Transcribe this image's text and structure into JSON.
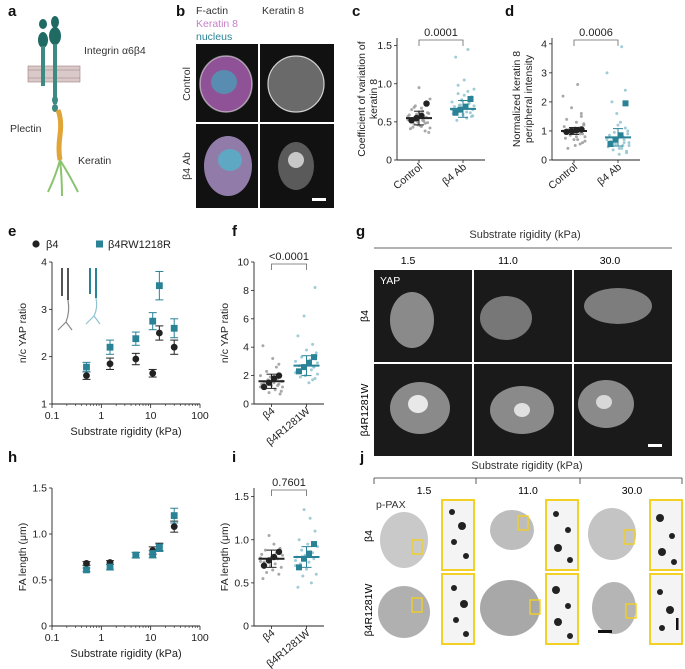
{
  "panel_letters": [
    "a",
    "b",
    "c",
    "d",
    "e",
    "f",
    "g",
    "h",
    "i",
    "j"
  ],
  "schematic": {
    "integrin_label": "Integrin α6β4",
    "plectin_label": "Plectin",
    "keratin_label": "Keratin"
  },
  "micrographs_b": {
    "stain_labels": [
      "F-actin",
      "Keratin 8",
      "nucleus"
    ],
    "column_header": "Keratin 8",
    "row_labels": [
      "Control",
      "β4 Ab"
    ]
  },
  "micrographs_g": {
    "title": "Substrate rigidity (kPa)",
    "columns": [
      "1.5",
      "11.0",
      "30.0"
    ],
    "stain_label": "YAP",
    "row_labels": [
      "β4",
      "β4R1281W"
    ]
  },
  "micrographs_j": {
    "title": "Substrate rigidity (kPa)",
    "columns": [
      "1.5",
      "11.0",
      "30.0"
    ],
    "stain_label": "p-PAX",
    "row_labels": [
      "β4",
      "β4R1281W"
    ]
  },
  "colors": {
    "black_series": "#222222",
    "teal_series": "#2a8296",
    "teal_light": "#8fc3d1",
    "highlight": "#f2d024",
    "magenta": "#c87fc8"
  },
  "chart_data": [
    {
      "id": "c",
      "type": "scatter",
      "ylabel": "Coefficient of variation of keratin 8",
      "categories": [
        "Control",
        "β4 Ab"
      ],
      "ylim": [
        0,
        1.6
      ],
      "yticks": [
        "0",
        "0.5",
        "1.0",
        "1.5"
      ],
      "means": [
        0.55,
        0.67
      ],
      "sd": [
        0.09,
        0.11
      ],
      "pvalue": "0.0001",
      "points": [
        [
          0.57,
          0.42,
          0.61,
          0.49,
          0.75,
          0.38,
          0.55,
          0.52,
          0.68,
          0.45,
          0.63,
          0.5,
          0.58,
          0.71,
          0.47,
          0.54,
          0.66,
          0.41,
          0.59,
          0.53,
          0.8,
          0.36,
          0.62,
          0.56,
          0.48,
          0.51,
          0.64,
          0.44,
          0.57,
          0.95,
          0.46,
          0.6,
          0.52,
          0.69,
          0.43
        ],
        [
          0.66,
          0.71,
          0.58,
          0.83,
          0.62,
          0.75,
          0.9,
          0.55,
          0.68,
          1.05,
          0.6,
          0.79,
          0.72,
          0.64,
          0.87,
          0.52,
          1.35,
          0.7,
          0.61,
          0.76,
          0.93,
          0.66,
          0.57,
          0.81,
          0.74,
          1.45,
          0.63,
          0.69,
          0.85,
          0.59,
          0.78,
          0.67,
          0.72,
          0.98,
          0.6
        ]
      ],
      "replicate_means": [
        [
          0.52,
          0.55,
          0.58,
          0.74
        ],
        [
          0.62,
          0.66,
          0.7,
          0.8
        ]
      ]
    },
    {
      "id": "d",
      "type": "scatter",
      "ylabel": "Normalized keratin 8 peripheral intensity",
      "categories": [
        "Control",
        "β4 Ab"
      ],
      "ylim": [
        0,
        4.2
      ],
      "yticks": [
        "0",
        "1",
        "2",
        "3",
        "4"
      ],
      "means": [
        1.0,
        0.78
      ],
      "sd": [
        0.12,
        0.3
      ],
      "pvalue": "0.0006",
      "points": [
        [
          1.0,
          0.8,
          1.2,
          0.6,
          1.5,
          0.9,
          1.1,
          0.7,
          1.3,
          0.5,
          1.0,
          0.95,
          1.8,
          0.85,
          1.05,
          0.4,
          1.4,
          0.75,
          1.15,
          2.2,
          0.65,
          1.25,
          0.9,
          1.6,
          0.55,
          1.0,
          2.6,
          0.8,
          1.1,
          0.7
        ],
        [
          0.7,
          0.5,
          0.9,
          0.3,
          1.1,
          0.6,
          0.8,
          0.4,
          1.3,
          0.2,
          0.75,
          1.6,
          0.55,
          0.95,
          0.35,
          2.0,
          0.65,
          0.85,
          0.45,
          3.0,
          0.6,
          1.0,
          0.25,
          2.4,
          0.7,
          0.5,
          3.9,
          0.8,
          0.4,
          1.2
        ]
      ],
      "replicate_means": [
        [
          0.97,
          1.0,
          1.02,
          1.05
        ],
        [
          0.55,
          0.7,
          0.85,
          1.95
        ]
      ]
    },
    {
      "id": "e",
      "type": "scatter",
      "xscale": "log",
      "xlabel": "Substrate rigidity (kPa)",
      "ylabel": "n/c YAP ratio",
      "xlim": [
        0.1,
        100
      ],
      "ylim": [
        1,
        4
      ],
      "xticks": [
        "0.1",
        "1",
        "10",
        "100"
      ],
      "yticks": [
        "1",
        "2",
        "3",
        "4"
      ],
      "series": [
        {
          "name": "β4",
          "x": [
            0.5,
            1.5,
            5,
            11,
            15,
            30
          ],
          "y": [
            1.6,
            1.85,
            1.95,
            1.65,
            2.5,
            2.2
          ],
          "err": [
            0.08,
            0.12,
            0.12,
            0.08,
            0.15,
            0.15
          ]
        },
        {
          "name": "β4RW1218R",
          "x": [
            0.5,
            1.5,
            5,
            11,
            15,
            30
          ],
          "y": [
            1.78,
            2.2,
            2.38,
            2.75,
            3.5,
            2.6
          ],
          "err": [
            0.1,
            0.15,
            0.14,
            0.18,
            0.3,
            0.2
          ]
        }
      ]
    },
    {
      "id": "f",
      "type": "scatter",
      "ylabel": "n/c YAP ratio",
      "categories": [
        "β4",
        "β4R1281W"
      ],
      "ylim": [
        0,
        10
      ],
      "yticks": [
        "0",
        "2",
        "4",
        "6",
        "8",
        "10"
      ],
      "means": [
        1.6,
        2.7
      ],
      "sd": [
        0.5,
        0.7
      ],
      "pvalue": "<0.0001",
      "points": [
        [
          1.2,
          1.6,
          0.9,
          2.1,
          1.4,
          1.8,
          2.6,
          1.0,
          1.5,
          3.2,
          1.3,
          1.9,
          0.8,
          1.7,
          2.3,
          1.1,
          1.5,
          4.1,
          1.4,
          2.0,
          1.2,
          1.6,
          0.7,
          2.8,
          1.3
        ],
        [
          2.2,
          2.9,
          3.4,
          1.8,
          2.6,
          4.2,
          2.4,
          3.1,
          1.5,
          2.8,
          3.8,
          2.0,
          6.2,
          2.5,
          3.3,
          1.9,
          2.7,
          4.8,
          2.3,
          3.0,
          2.1,
          3.6,
          8.2,
          2.6,
          1.7
        ]
      ],
      "replicate_means": [
        [
          1.2,
          1.5,
          1.8,
          2.0
        ],
        [
          2.3,
          2.6,
          2.9,
          3.3
        ]
      ]
    },
    {
      "id": "h",
      "type": "scatter",
      "xscale": "log",
      "xlabel": "Substrate rigidity (kPa)",
      "ylabel": "FA length (μm)",
      "xlim": [
        0.1,
        100
      ],
      "ylim": [
        0,
        1.5
      ],
      "xticks": [
        "0.1",
        "1",
        "10",
        "100"
      ],
      "yticks": [
        "0",
        "0.5",
        "1.0",
        "1.5"
      ],
      "series": [
        {
          "name": "β4",
          "x": [
            0.5,
            1.5,
            5,
            11,
            15,
            30
          ],
          "y": [
            0.68,
            0.69,
            0.77,
            0.82,
            0.86,
            1.08
          ],
          "err": [
            0.02,
            0.02,
            0.03,
            0.04,
            0.04,
            0.06
          ]
        },
        {
          "name": "β4RW1218R",
          "x": [
            0.5,
            1.5,
            5,
            11,
            15,
            30
          ],
          "y": [
            0.61,
            0.64,
            0.77,
            0.78,
            0.85,
            1.2
          ],
          "err": [
            0.02,
            0.03,
            0.03,
            0.04,
            0.04,
            0.08
          ]
        }
      ]
    },
    {
      "id": "i",
      "type": "scatter",
      "ylabel": "FA length (μm)",
      "categories": [
        "β4",
        "β4R1281W"
      ],
      "ylim": [
        0,
        1.6
      ],
      "yticks": [
        "0",
        "0.5",
        "1.0",
        "1.5"
      ],
      "means": [
        0.78,
        0.8
      ],
      "sd": [
        0.1,
        0.12
      ],
      "pvalue": "0.7601",
      "points": [
        [
          0.75,
          0.82,
          0.68,
          0.9,
          0.6,
          0.78,
          0.85,
          0.72,
          0.95,
          0.65,
          0.8,
          0.7,
          1.05,
          0.76,
          0.62,
          0.88,
          0.74,
          0.55,
          0.83,
          0.79
        ],
        [
          0.7,
          0.92,
          0.6,
          1.1,
          0.78,
          0.85,
          0.5,
          1.25,
          0.74,
          0.95,
          0.66,
          0.82,
          1.35,
          0.58,
          0.88,
          0.72,
          1.0,
          0.45,
          0.8,
          0.76
        ]
      ],
      "replicate_means": [
        [
          0.7,
          0.76,
          0.8,
          0.86
        ],
        [
          0.68,
          0.78,
          0.84,
          0.95
        ]
      ]
    }
  ]
}
